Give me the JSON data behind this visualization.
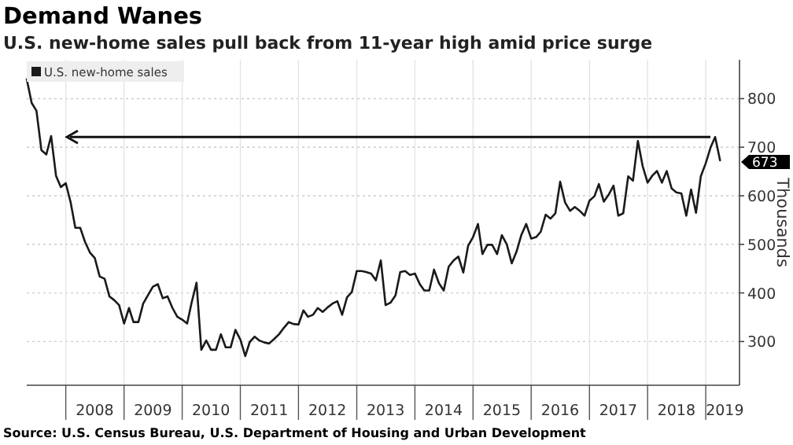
{
  "chart_data": {
    "type": "line",
    "title": "Demand Wanes",
    "subtitle": "U.S. new-home sales pull back from 11-year high amid price surge",
    "ylabel": "Thousands",
    "x": [
      "2007-05",
      "2007-06",
      "2007-07",
      "2007-08",
      "2007-09",
      "2007-10",
      "2007-11",
      "2007-12",
      "2008-01",
      "2008-02",
      "2008-03",
      "2008-04",
      "2008-05",
      "2008-06",
      "2008-07",
      "2008-08",
      "2008-09",
      "2008-10",
      "2008-11",
      "2008-12",
      "2009-01",
      "2009-02",
      "2009-03",
      "2009-04",
      "2009-05",
      "2009-06",
      "2009-07",
      "2009-08",
      "2009-09",
      "2009-10",
      "2009-11",
      "2009-12",
      "2010-01",
      "2010-02",
      "2010-03",
      "2010-04",
      "2010-05",
      "2010-06",
      "2010-07",
      "2010-08",
      "2010-09",
      "2010-10",
      "2010-11",
      "2010-12",
      "2011-01",
      "2011-02",
      "2011-03",
      "2011-04",
      "2011-05",
      "2011-06",
      "2011-07",
      "2011-08",
      "2011-09",
      "2011-10",
      "2011-11",
      "2011-12",
      "2012-01",
      "2012-02",
      "2012-03",
      "2012-04",
      "2012-05",
      "2012-06",
      "2012-07",
      "2012-08",
      "2012-09",
      "2012-10",
      "2012-11",
      "2012-12",
      "2013-01",
      "2013-02",
      "2013-03",
      "2013-04",
      "2013-05",
      "2013-06",
      "2013-07",
      "2013-08",
      "2013-09",
      "2013-10",
      "2013-11",
      "2013-12",
      "2014-01",
      "2014-02",
      "2014-03",
      "2014-04",
      "2014-05",
      "2014-06",
      "2014-07",
      "2014-08",
      "2014-09",
      "2014-10",
      "2014-11",
      "2014-12",
      "2015-01",
      "2015-02",
      "2015-03",
      "2015-04",
      "2015-05",
      "2015-06",
      "2015-07",
      "2015-08",
      "2015-09",
      "2015-10",
      "2015-11",
      "2015-12",
      "2016-01",
      "2016-02",
      "2016-03",
      "2016-04",
      "2016-05",
      "2016-06",
      "2016-07",
      "2016-08",
      "2016-09",
      "2016-10",
      "2016-11",
      "2016-12",
      "2017-01",
      "2017-02",
      "2017-03",
      "2017-04",
      "2017-05",
      "2017-06",
      "2017-07",
      "2017-08",
      "2017-09",
      "2017-10",
      "2017-11",
      "2017-12",
      "2018-01",
      "2018-02",
      "2018-03",
      "2018-04",
      "2018-05",
      "2018-06",
      "2018-07",
      "2018-08",
      "2018-09",
      "2018-10",
      "2018-11",
      "2018-12",
      "2019-01",
      "2019-02",
      "2019-03",
      "2019-04"
    ],
    "series": [
      {
        "name": "U.S. new-home sales",
        "color": "#1a1a1a",
        "values": [
          840,
          791,
          775,
          694,
          685,
          723,
          641,
          618,
          626,
          586,
          534,
          534,
          505,
          483,
          472,
          434,
          429,
          393,
          385,
          375,
          337,
          369,
          340,
          340,
          378,
          396,
          413,
          418,
          389,
          393,
          369,
          351,
          345,
          337,
          380,
          421,
          283,
          302,
          283,
          283,
          315,
          288,
          288,
          324,
          304,
          270,
          299,
          310,
          302,
          298,
          296,
          305,
          315,
          328,
          340,
          336,
          335,
          364,
          351,
          355,
          369,
          361,
          370,
          378,
          383,
          355,
          391,
          402,
          445,
          445,
          443,
          440,
          426,
          467,
          375,
          380,
          395,
          443,
          445,
          437,
          440,
          418,
          405,
          405,
          448,
          420,
          405,
          454,
          467,
          475,
          442,
          497,
          515,
          542,
          480,
          499,
          499,
          480,
          519,
          500,
          461,
          485,
          520,
          542,
          512,
          515,
          526,
          561,
          553,
          564,
          629,
          586,
          569,
          577,
          569,
          559,
          590,
          599,
          624,
          588,
          602,
          621,
          559,
          564,
          640,
          631,
          713,
          661,
          627,
          642,
          651,
          627,
          651,
          615,
          607,
          605,
          559,
          613,
          565,
          640,
          667,
          700,
          721,
          673
        ]
      }
    ],
    "xlim": [
      "2007-05",
      "2019-08"
    ],
    "xticks": [
      {
        "value": "2008",
        "label": null
      },
      {
        "value": "2008-07",
        "label": "2008"
      },
      {
        "value": "2009",
        "label": null
      },
      {
        "value": "2009-07",
        "label": "2009"
      },
      {
        "value": "2010",
        "label": null
      },
      {
        "value": "2010-07",
        "label": "2010"
      },
      {
        "value": "2011",
        "label": null
      },
      {
        "value": "2011-07",
        "label": "2011"
      },
      {
        "value": "2012",
        "label": null
      },
      {
        "value": "2012-07",
        "label": "2012"
      },
      {
        "value": "2013",
        "label": null
      },
      {
        "value": "2013-07",
        "label": "2013"
      },
      {
        "value": "2014",
        "label": null
      },
      {
        "value": "2014-07",
        "label": "2014"
      },
      {
        "value": "2015",
        "label": null
      },
      {
        "value": "2015-07",
        "label": "2015"
      },
      {
        "value": "2016",
        "label": null
      },
      {
        "value": "2016-07",
        "label": "2016"
      },
      {
        "value": "2017",
        "label": null
      },
      {
        "value": "2017-07",
        "label": "2017"
      },
      {
        "value": "2018",
        "label": null
      },
      {
        "value": "2018-07",
        "label": "2018"
      },
      {
        "value": "2019",
        "label": null
      },
      {
        "value": "2019-05",
        "label": "2019"
      }
    ],
    "ylim": [
      210,
      880
    ],
    "yticks": [
      300,
      400,
      500,
      600,
      700,
      800
    ],
    "grid": true,
    "legend": "top left",
    "ref_lines": [
      {
        "axis": "y",
        "value": 721,
        "color": "#111111"
      }
    ],
    "annotations": [
      {
        "text": "673",
        "x": "2019-04",
        "y": 673
      },
      "Source: U.S. Census Bureau, U.S. Department of Housing and Urban Development"
    ]
  }
}
